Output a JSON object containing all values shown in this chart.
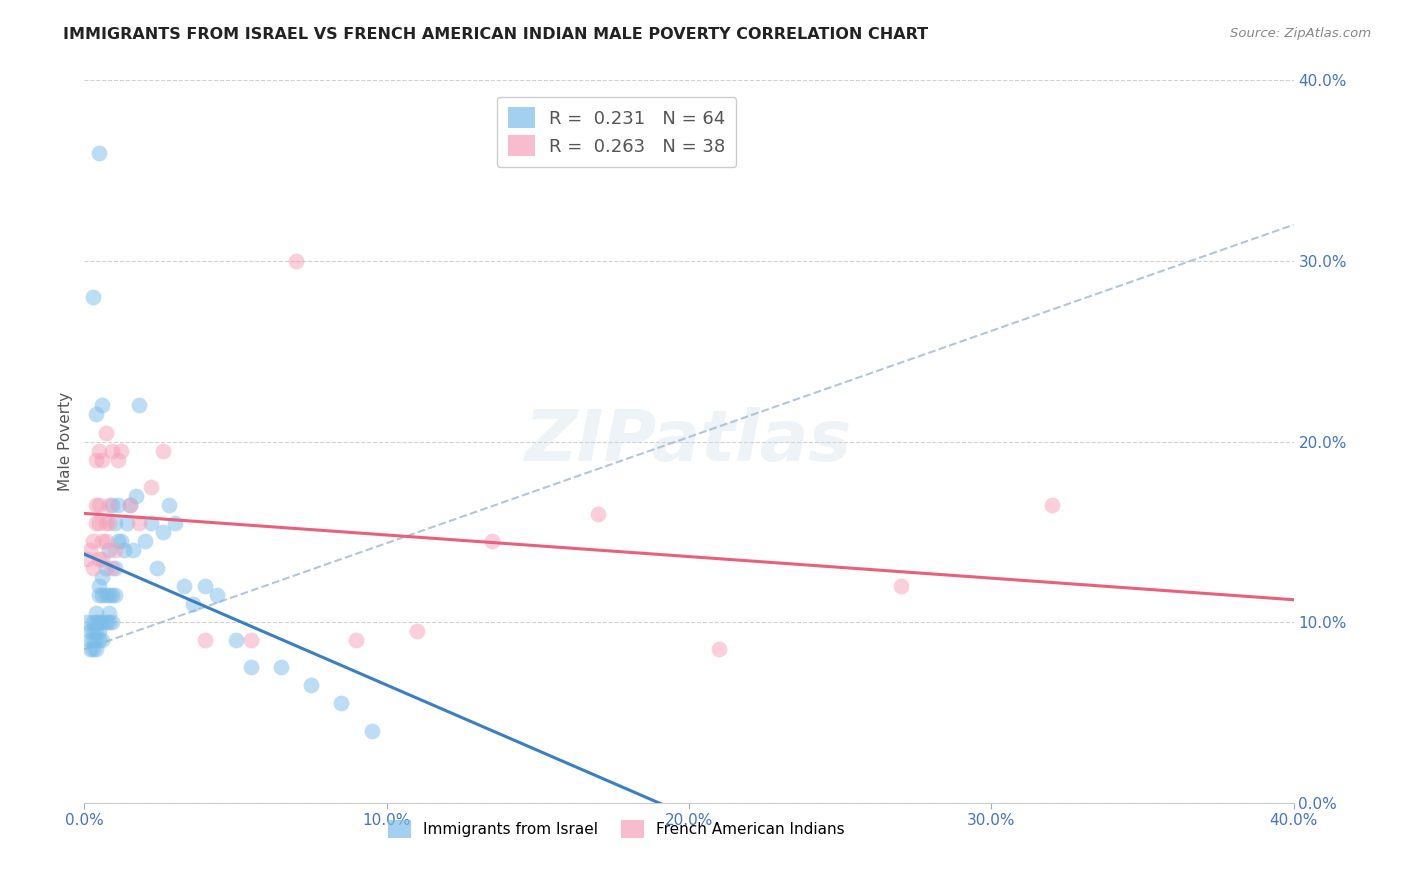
{
  "title": "IMMIGRANTS FROM ISRAEL VS FRENCH AMERICAN INDIAN MALE POVERTY CORRELATION CHART",
  "source": "Source: ZipAtlas.com",
  "ylabel": "Male Poverty",
  "xlim": [
    0.0,
    0.4
  ],
  "ylim": [
    0.0,
    0.4
  ],
  "ytick_positions": [
    0.0,
    0.1,
    0.2,
    0.3,
    0.4
  ],
  "ytick_labels": [
    "0.0%",
    "10.0%",
    "20.0%",
    "30.0%",
    "40.0%"
  ],
  "xtick_positions": [
    0.0,
    0.1,
    0.2,
    0.3,
    0.4
  ],
  "xtick_labels": [
    "0.0%",
    "10.0%",
    "20.0%",
    "30.0%",
    "40.0%"
  ],
  "grid_color": "#cccccc",
  "background_color": "#ffffff",
  "watermark": "ZIPatlas",
  "series1_color": "#7bbce8",
  "series2_color": "#f4a0b8",
  "series1_line_color": "#3a7fc1",
  "series2_line_color": "#e8607a",
  "dashed_line_color": "#a0b8d0",
  "axis_tick_color": "#4472c4",
  "title_color": "#222222",
  "source_color": "#888888",
  "legend1_label_r": "R =  0.231",
  "legend1_label_n": "N = 64",
  "legend2_label_r": "R =  0.263",
  "legend2_label_n": "N = 38",
  "bottom_legend1": "Immigrants from Israel",
  "bottom_legend2": "French American Indians",
  "series1_x": [
    0.001,
    0.002,
    0.002,
    0.002,
    0.003,
    0.003,
    0.003,
    0.003,
    0.004,
    0.004,
    0.004,
    0.004,
    0.004,
    0.005,
    0.005,
    0.005,
    0.005,
    0.005,
    0.006,
    0.006,
    0.006,
    0.006,
    0.007,
    0.007,
    0.007,
    0.008,
    0.008,
    0.008,
    0.008,
    0.009,
    0.009,
    0.009,
    0.01,
    0.01,
    0.01,
    0.011,
    0.011,
    0.012,
    0.013,
    0.014,
    0.015,
    0.016,
    0.017,
    0.018,
    0.02,
    0.022,
    0.024,
    0.026,
    0.028,
    0.03,
    0.033,
    0.036,
    0.04,
    0.044,
    0.05,
    0.055,
    0.065,
    0.075,
    0.085,
    0.095,
    0.005,
    0.003,
    0.004,
    0.006
  ],
  "series1_y": [
    0.1,
    0.085,
    0.09,
    0.095,
    0.09,
    0.095,
    0.1,
    0.085,
    0.085,
    0.09,
    0.095,
    0.1,
    0.105,
    0.09,
    0.095,
    0.1,
    0.115,
    0.12,
    0.09,
    0.1,
    0.115,
    0.125,
    0.1,
    0.115,
    0.13,
    0.1,
    0.105,
    0.115,
    0.14,
    0.1,
    0.115,
    0.165,
    0.115,
    0.13,
    0.155,
    0.145,
    0.165,
    0.145,
    0.14,
    0.155,
    0.165,
    0.14,
    0.17,
    0.22,
    0.145,
    0.155,
    0.13,
    0.15,
    0.165,
    0.155,
    0.12,
    0.11,
    0.12,
    0.115,
    0.09,
    0.075,
    0.075,
    0.065,
    0.055,
    0.04,
    0.36,
    0.28,
    0.215,
    0.22
  ],
  "series2_x": [
    0.001,
    0.002,
    0.003,
    0.003,
    0.004,
    0.004,
    0.004,
    0.005,
    0.005,
    0.005,
    0.005,
    0.006,
    0.006,
    0.006,
    0.007,
    0.007,
    0.008,
    0.008,
    0.009,
    0.01,
    0.011,
    0.012,
    0.015,
    0.018,
    0.022,
    0.026,
    0.04,
    0.055,
    0.07,
    0.09,
    0.11,
    0.135,
    0.17,
    0.21,
    0.27,
    0.32,
    0.007,
    0.009
  ],
  "series2_y": [
    0.135,
    0.14,
    0.13,
    0.145,
    0.165,
    0.155,
    0.19,
    0.135,
    0.155,
    0.165,
    0.195,
    0.135,
    0.145,
    0.19,
    0.145,
    0.155,
    0.155,
    0.165,
    0.13,
    0.14,
    0.19,
    0.195,
    0.165,
    0.155,
    0.175,
    0.195,
    0.09,
    0.09,
    0.3,
    0.09,
    0.095,
    0.145,
    0.16,
    0.085,
    0.12,
    0.165,
    0.205,
    0.195
  ],
  "dashed_line_x": [
    0.0,
    0.4
  ],
  "dashed_line_y": [
    0.085,
    0.32
  ]
}
